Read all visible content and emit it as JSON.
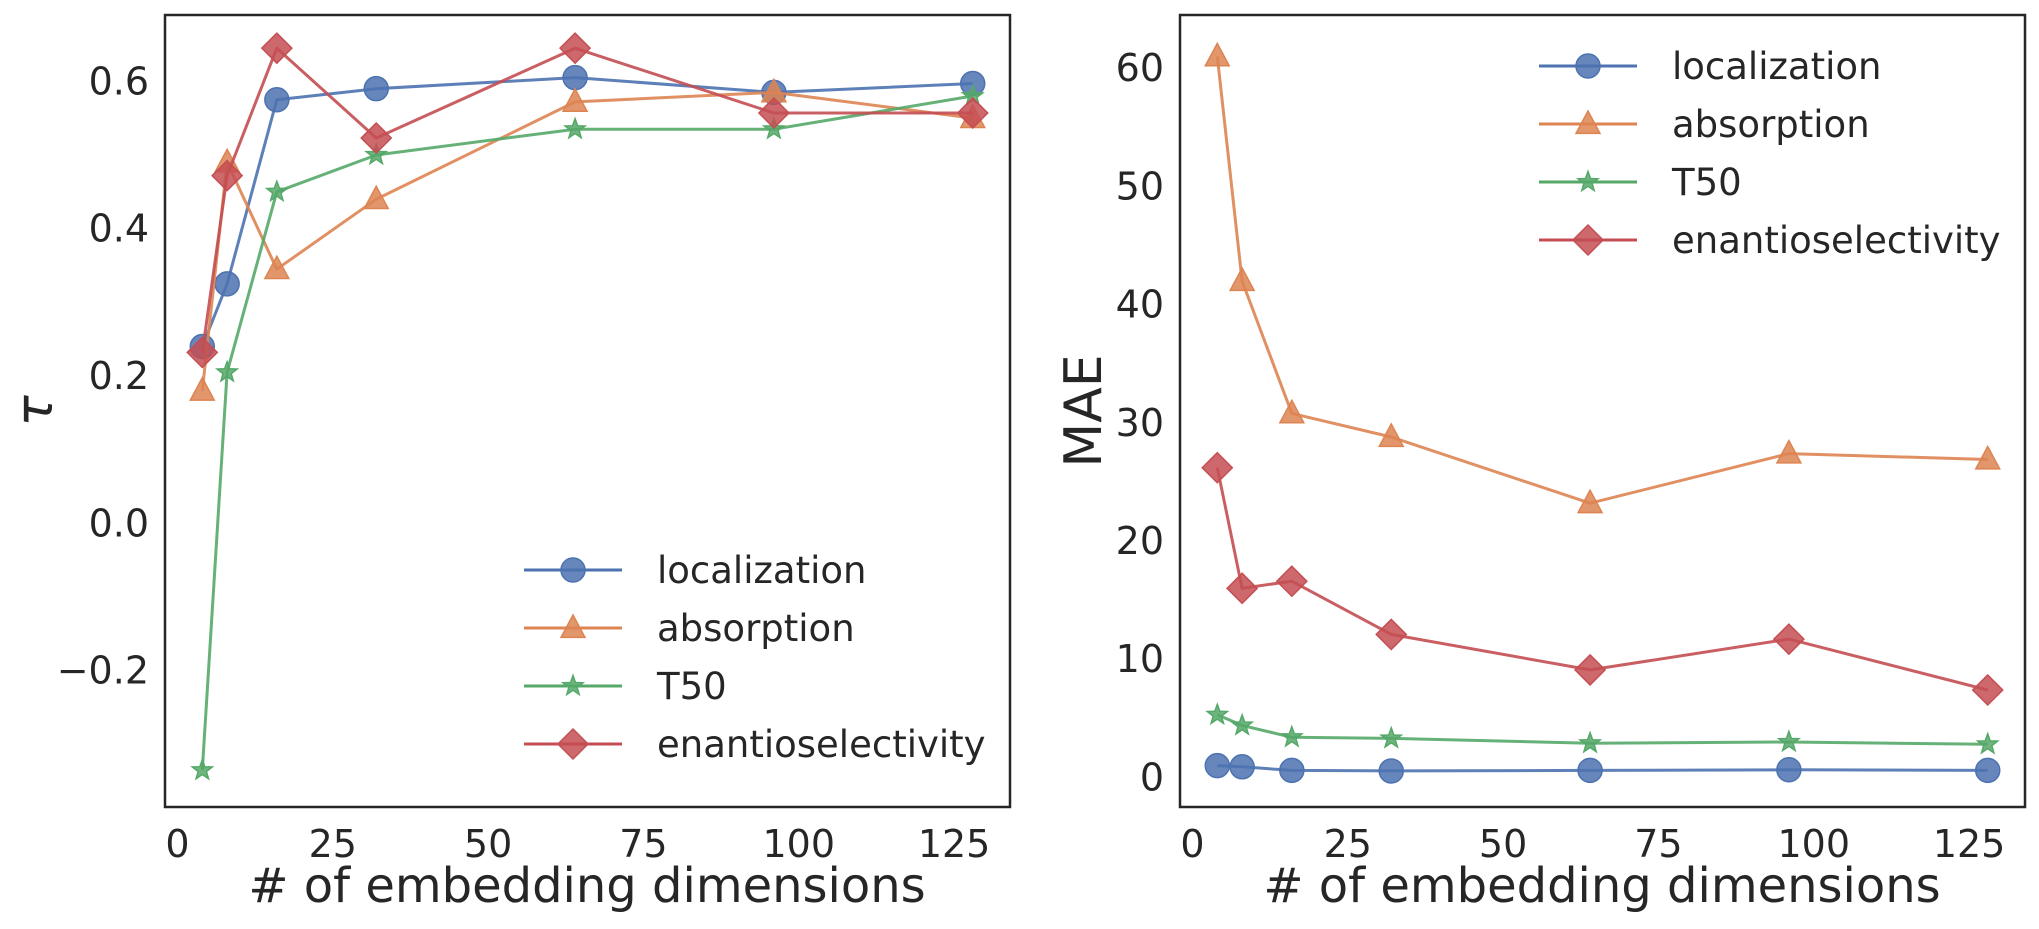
{
  "chart_data": [
    {
      "type": "line",
      "title": "",
      "xlabel": "# of embedding dimensions",
      "ylabel": "τ",
      "xlim": [
        -2,
        134
      ],
      "ylim": [
        -0.385,
        0.69
      ],
      "xticks": [
        0,
        25,
        50,
        75,
        100,
        125
      ],
      "xtick_labels": [
        "0",
        "25",
        "50",
        "75",
        "100",
        "125"
      ],
      "yticks": [
        -0.2,
        0.0,
        0.2,
        0.4,
        0.6
      ],
      "ytick_labels": [
        "−0.2",
        "0.0",
        "0.2",
        "0.4",
        "0.6"
      ],
      "grid": false,
      "legend_position": "lower-right",
      "x": [
        4,
        8,
        16,
        32,
        64,
        96,
        128
      ],
      "series": [
        {
          "name": "localization",
          "marker": "circle",
          "color": "#4c72b0",
          "values": [
            0.24,
            0.325,
            0.575,
            0.59,
            0.605,
            0.585,
            0.597
          ]
        },
        {
          "name": "absorption",
          "marker": "triangle",
          "color": "#dd8452",
          "values": [
            0.18,
            0.49,
            0.345,
            0.44,
            0.572,
            0.585,
            0.55
          ]
        },
        {
          "name": "T50",
          "marker": "star",
          "color": "#55a868",
          "values": [
            -0.335,
            0.205,
            0.45,
            0.5,
            0.535,
            0.535,
            0.58
          ]
        },
        {
          "name": "enantioselectivity",
          "marker": "diamond",
          "color": "#c44e52",
          "values": [
            0.232,
            0.472,
            0.645,
            0.523,
            0.645,
            0.557,
            0.557
          ]
        }
      ]
    },
    {
      "type": "line",
      "title": "",
      "xlabel": "# of embedding dimensions",
      "ylabel": "MAE",
      "xlim": [
        -2,
        134
      ],
      "ylim": [
        -2.5,
        64.5
      ],
      "xticks": [
        0,
        25,
        50,
        75,
        100,
        125
      ],
      "xtick_labels": [
        "0",
        "25",
        "50",
        "75",
        "100",
        "125"
      ],
      "yticks": [
        0,
        10,
        20,
        30,
        40,
        50,
        60
      ],
      "ytick_labels": [
        "0",
        "10",
        "20",
        "30",
        "40",
        "50",
        "60"
      ],
      "grid": false,
      "legend_position": "upper-right",
      "x": [
        4,
        8,
        16,
        32,
        64,
        96,
        128
      ],
      "series": [
        {
          "name": "localization",
          "marker": "circle",
          "color": "#4c72b0",
          "values": [
            1.0,
            0.9,
            0.6,
            0.55,
            0.6,
            0.65,
            0.6
          ]
        },
        {
          "name": "absorption",
          "marker": "triangle",
          "color": "#dd8452",
          "values": [
            61.0,
            42.0,
            30.8,
            28.8,
            23.2,
            27.4,
            26.9
          ]
        },
        {
          "name": "T50",
          "marker": "star",
          "color": "#55a868",
          "values": [
            5.3,
            4.4,
            3.4,
            3.3,
            2.9,
            3.0,
            2.8
          ]
        },
        {
          "name": "enantioselectivity",
          "marker": "diamond",
          "color": "#c44e52",
          "values": [
            26.2,
            16.0,
            16.6,
            12.1,
            9.1,
            11.7,
            7.4
          ]
        }
      ]
    }
  ]
}
